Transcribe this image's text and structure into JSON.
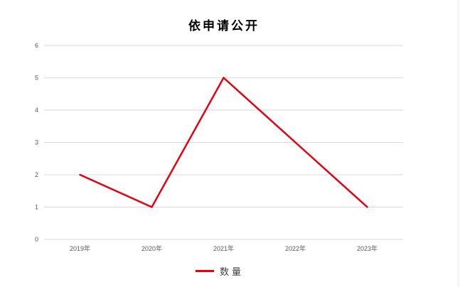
{
  "chart_data": {
    "type": "line",
    "title": "依申请公开",
    "categories": [
      "2019年",
      "2020年",
      "2021年",
      "2022年",
      "2023年"
    ],
    "series": [
      {
        "name": "数量",
        "values": [
          2,
          1,
          5,
          3,
          1
        ],
        "color": "#e60012"
      }
    ],
    "ylim": [
      0,
      6
    ],
    "yticks": [
      0,
      1,
      2,
      3,
      4,
      5,
      6
    ],
    "grid": true,
    "legend": "bottom"
  }
}
